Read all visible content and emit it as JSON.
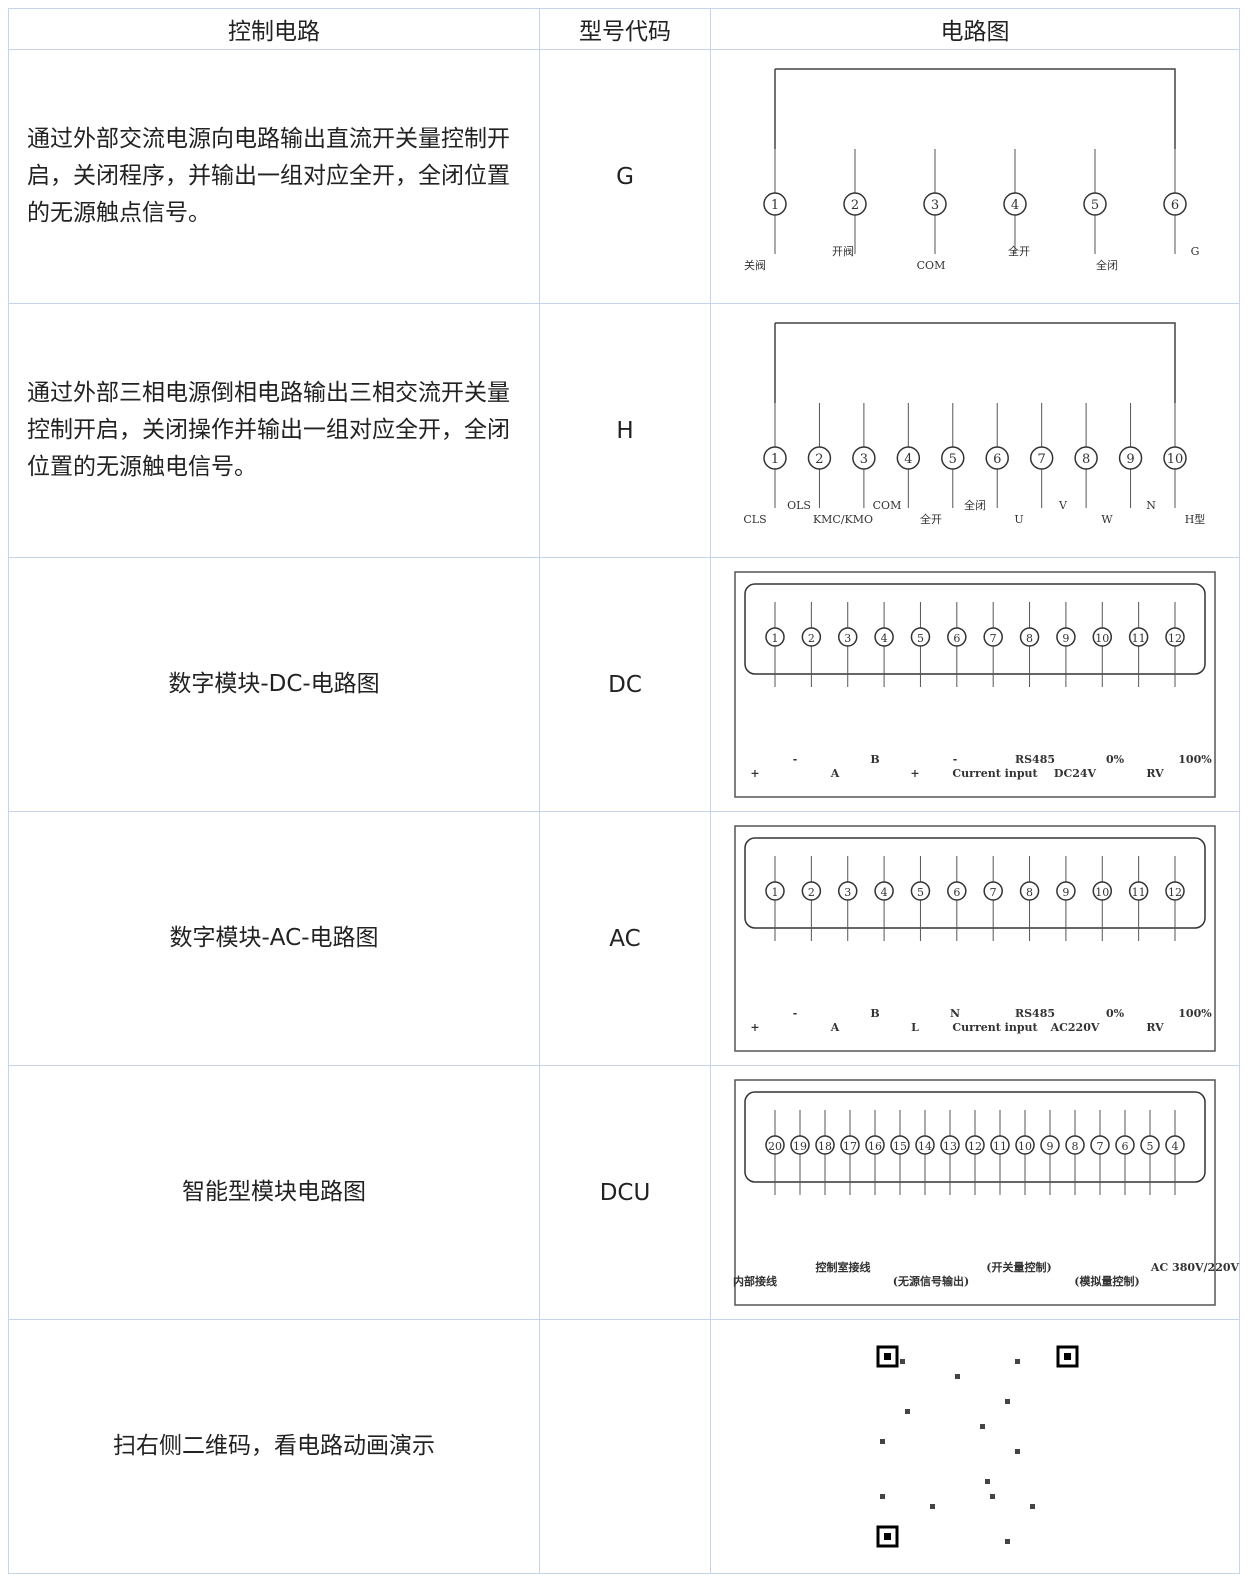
{
  "table": {
    "header": [
      "控制电路",
      "型号代码",
      "电路图"
    ],
    "rows": [
      {
        "description": "通过外部交流电源向电路输出直流开关量控制开启，关闭程序，并输出一组对应全开，全闭位置的无源触点信号。",
        "code": "G",
        "diagram": {
          "terminals": [
            "1",
            "2",
            "3",
            "4",
            "5",
            "6"
          ],
          "labels": [
            "关阀",
            "开阀",
            "COM",
            "全开",
            "全闭",
            "G"
          ]
        }
      },
      {
        "description": "通过外部三相电源倒相电路输出三相交流开关量控制开启，关闭操作并输出一组对应全开，全闭位置的无源触电信号。",
        "code": "H",
        "diagram": {
          "terminals": [
            "1",
            "2",
            "3",
            "4",
            "5",
            "6",
            "7",
            "8",
            "9",
            "10"
          ],
          "labels": [
            "CLS",
            "OLS",
            "KMC/KMO",
            "COM",
            "全开",
            "全闭",
            "U",
            "V",
            "W",
            "N",
            "H型"
          ]
        }
      },
      {
        "description": "数字模块-DC-电路图",
        "code": "DC",
        "diagram": {
          "terminals": [
            "1",
            "2",
            "3",
            "4",
            "5",
            "6",
            "7",
            "8",
            "9",
            "10",
            "11",
            "12"
          ],
          "labels": [
            "+",
            "-",
            "A",
            "B",
            "+",
            "-",
            "Current input",
            "RS485",
            "DC24V",
            "0%",
            "RV",
            "100%"
          ]
        }
      },
      {
        "description": "数字模块-AC-电路图",
        "code": "AC",
        "diagram": {
          "terminals": [
            "1",
            "2",
            "3",
            "4",
            "5",
            "6",
            "7",
            "8",
            "9",
            "10",
            "11",
            "12"
          ],
          "labels": [
            "+",
            "-",
            "A",
            "B",
            "L",
            "N",
            "Current input",
            "RS485",
            "AC220V",
            "0%",
            "RV",
            "100%"
          ]
        }
      },
      {
        "description": "智能型模块电路图",
        "code": "DCU",
        "diagram": {
          "terminals": [
            "20",
            "19",
            "18",
            "17",
            "16",
            "15",
            "14",
            "13",
            "12",
            "11",
            "10",
            "9",
            "8",
            "7",
            "6",
            "5",
            "4"
          ],
          "labels": [
            "内部接线",
            "控制室接线",
            "(无源信号输出)",
            "(开关量控制)",
            "(模拟量控制)",
            "AC 380V/220V"
          ]
        }
      },
      {
        "description": "扫右侧二维码，看电路动画演示"
      }
    ]
  }
}
